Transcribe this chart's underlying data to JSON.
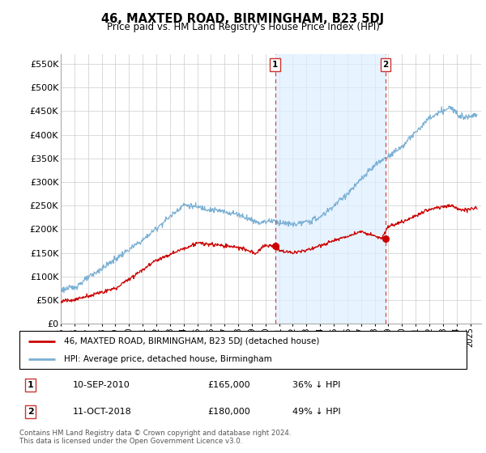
{
  "title": "46, MAXTED ROAD, BIRMINGHAM, B23 5DJ",
  "subtitle": "Price paid vs. HM Land Registry's House Price Index (HPI)",
  "ylim": [
    0,
    570000
  ],
  "yticks": [
    0,
    50000,
    100000,
    150000,
    200000,
    250000,
    300000,
    350000,
    400000,
    450000,
    500000,
    550000
  ],
  "xlim_start": 1995.0,
  "xlim_end": 2025.8,
  "background_color": "#ffffff",
  "grid_color": "#cccccc",
  "chart_bg": "#ffffff",
  "shade_color": "#ddeeff",
  "sale1_date": 2010.71,
  "sale1_price": 165000,
  "sale1_label": "1",
  "sale2_date": 2018.79,
  "sale2_price": 180000,
  "sale2_label": "2",
  "legend_line1": "46, MAXTED ROAD, BIRMINGHAM, B23 5DJ (detached house)",
  "legend_line2": "HPI: Average price, detached house, Birmingham",
  "table_row1": [
    "1",
    "10-SEP-2010",
    "£165,000",
    "36% ↓ HPI"
  ],
  "table_row2": [
    "2",
    "11-OCT-2018",
    "£180,000",
    "49% ↓ HPI"
  ],
  "footnote": "Contains HM Land Registry data © Crown copyright and database right 2024.\nThis data is licensed under the Open Government Licence v3.0.",
  "red_color": "#cc0000",
  "blue_color": "#7ab0d4",
  "dashed_color": "#dd4444"
}
